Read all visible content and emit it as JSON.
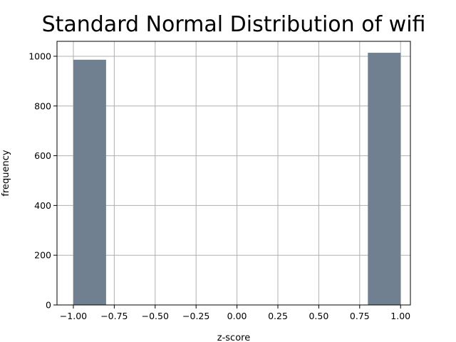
{
  "chart_data": {
    "type": "bar",
    "title": "Standard Normal Distribution of wifi",
    "xlabel": "z-score",
    "ylabel": "frequency",
    "xlim": [
      -1.1,
      1.06
    ],
    "ylim": [
      0,
      1060
    ],
    "grid": true,
    "bar_color": "#708090",
    "bins": [
      {
        "x0": -1.0,
        "x1": -0.8,
        "value": 986
      },
      {
        "x0": 0.8,
        "x1": 1.0,
        "value": 1014
      }
    ],
    "x_ticks": [
      -1.0,
      -0.75,
      -0.5,
      -0.25,
      0.0,
      0.25,
      0.5,
      0.75,
      1.0
    ],
    "x_tick_labels": [
      "−1.00",
      "−0.75",
      "−0.50",
      "−0.25",
      "0.00",
      "0.25",
      "0.50",
      "0.75",
      "1.00"
    ],
    "y_ticks": [
      0,
      200,
      400,
      600,
      800,
      1000
    ],
    "y_tick_labels": [
      "0",
      "200",
      "400",
      "600",
      "800",
      "1000"
    ]
  }
}
